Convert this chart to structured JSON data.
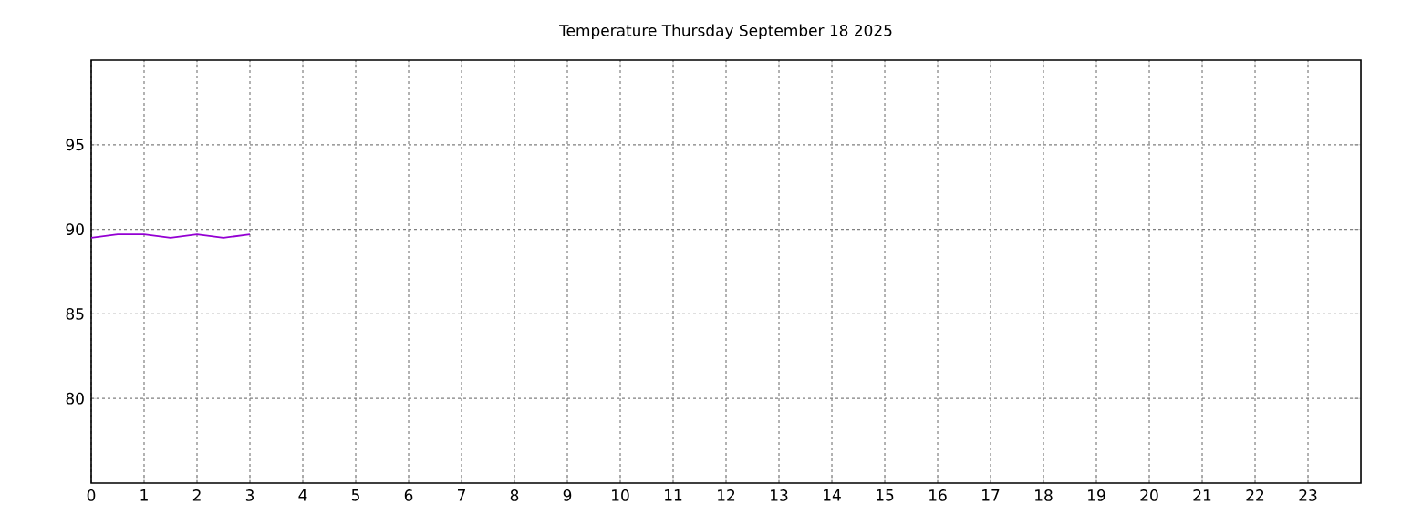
{
  "chart_data": {
    "type": "line",
    "title": "Temperature Thursday September 18 2025",
    "x": [
      0,
      0.5,
      1,
      1.5,
      2,
      2.5,
      3
    ],
    "series": [
      {
        "color": "#9400d3",
        "values": [
          89.5,
          89.7,
          89.7,
          89.5,
          89.7,
          89.5,
          89.7
        ]
      }
    ],
    "xlim": [
      0,
      24
    ],
    "ylim": [
      75,
      100
    ],
    "xticks": [
      0,
      1,
      2,
      3,
      4,
      5,
      6,
      7,
      8,
      9,
      10,
      11,
      12,
      13,
      14,
      15,
      16,
      17,
      18,
      19,
      20,
      21,
      22,
      23
    ],
    "yticks": [
      80,
      85,
      90,
      95
    ],
    "grid": true,
    "marker": "none",
    "line_style": "solid"
  }
}
